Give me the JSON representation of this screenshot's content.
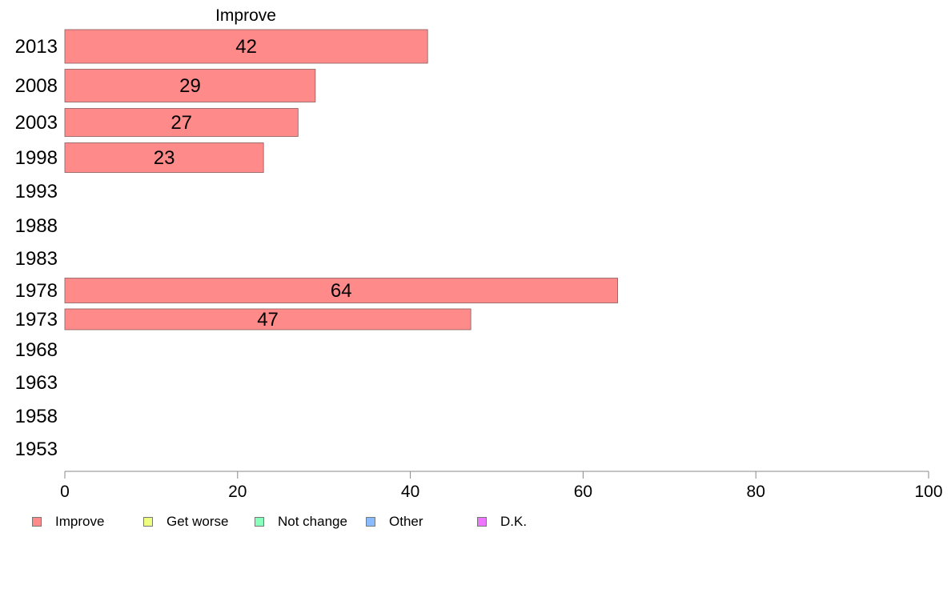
{
  "chart_data": {
    "type": "bar",
    "orientation": "horizontal",
    "title": "Improve",
    "categories": [
      "2013",
      "2008",
      "2003",
      "1998",
      "1993",
      "1988",
      "1983",
      "1978",
      "1973",
      "1968",
      "1963",
      "1958",
      "1953"
    ],
    "series": [
      {
        "name": "Improve",
        "color": "#ff8a8a",
        "values": [
          42,
          29,
          27,
          23,
          null,
          null,
          null,
          64,
          47,
          null,
          null,
          null,
          null
        ],
        "labels": [
          "42",
          "29",
          "27",
          "23",
          "",
          "",
          "",
          "64",
          "47",
          "",
          "",
          "",
          ""
        ]
      }
    ],
    "xlim": [
      0,
      100
    ],
    "xticks": [
      "0",
      "20",
      "40",
      "60",
      "80",
      "100"
    ],
    "grid": false,
    "legend_position": "bottom"
  },
  "legend": [
    {
      "label": "Improve",
      "color": "#ff8a8a"
    },
    {
      "label": "Get worse",
      "color": "#eeff80"
    },
    {
      "label": "Not change",
      "color": "#88ffbb"
    },
    {
      "label": "Other",
      "color": "#88bbff"
    },
    {
      "label": "D.K.",
      "color": "#ee77ff"
    }
  ]
}
